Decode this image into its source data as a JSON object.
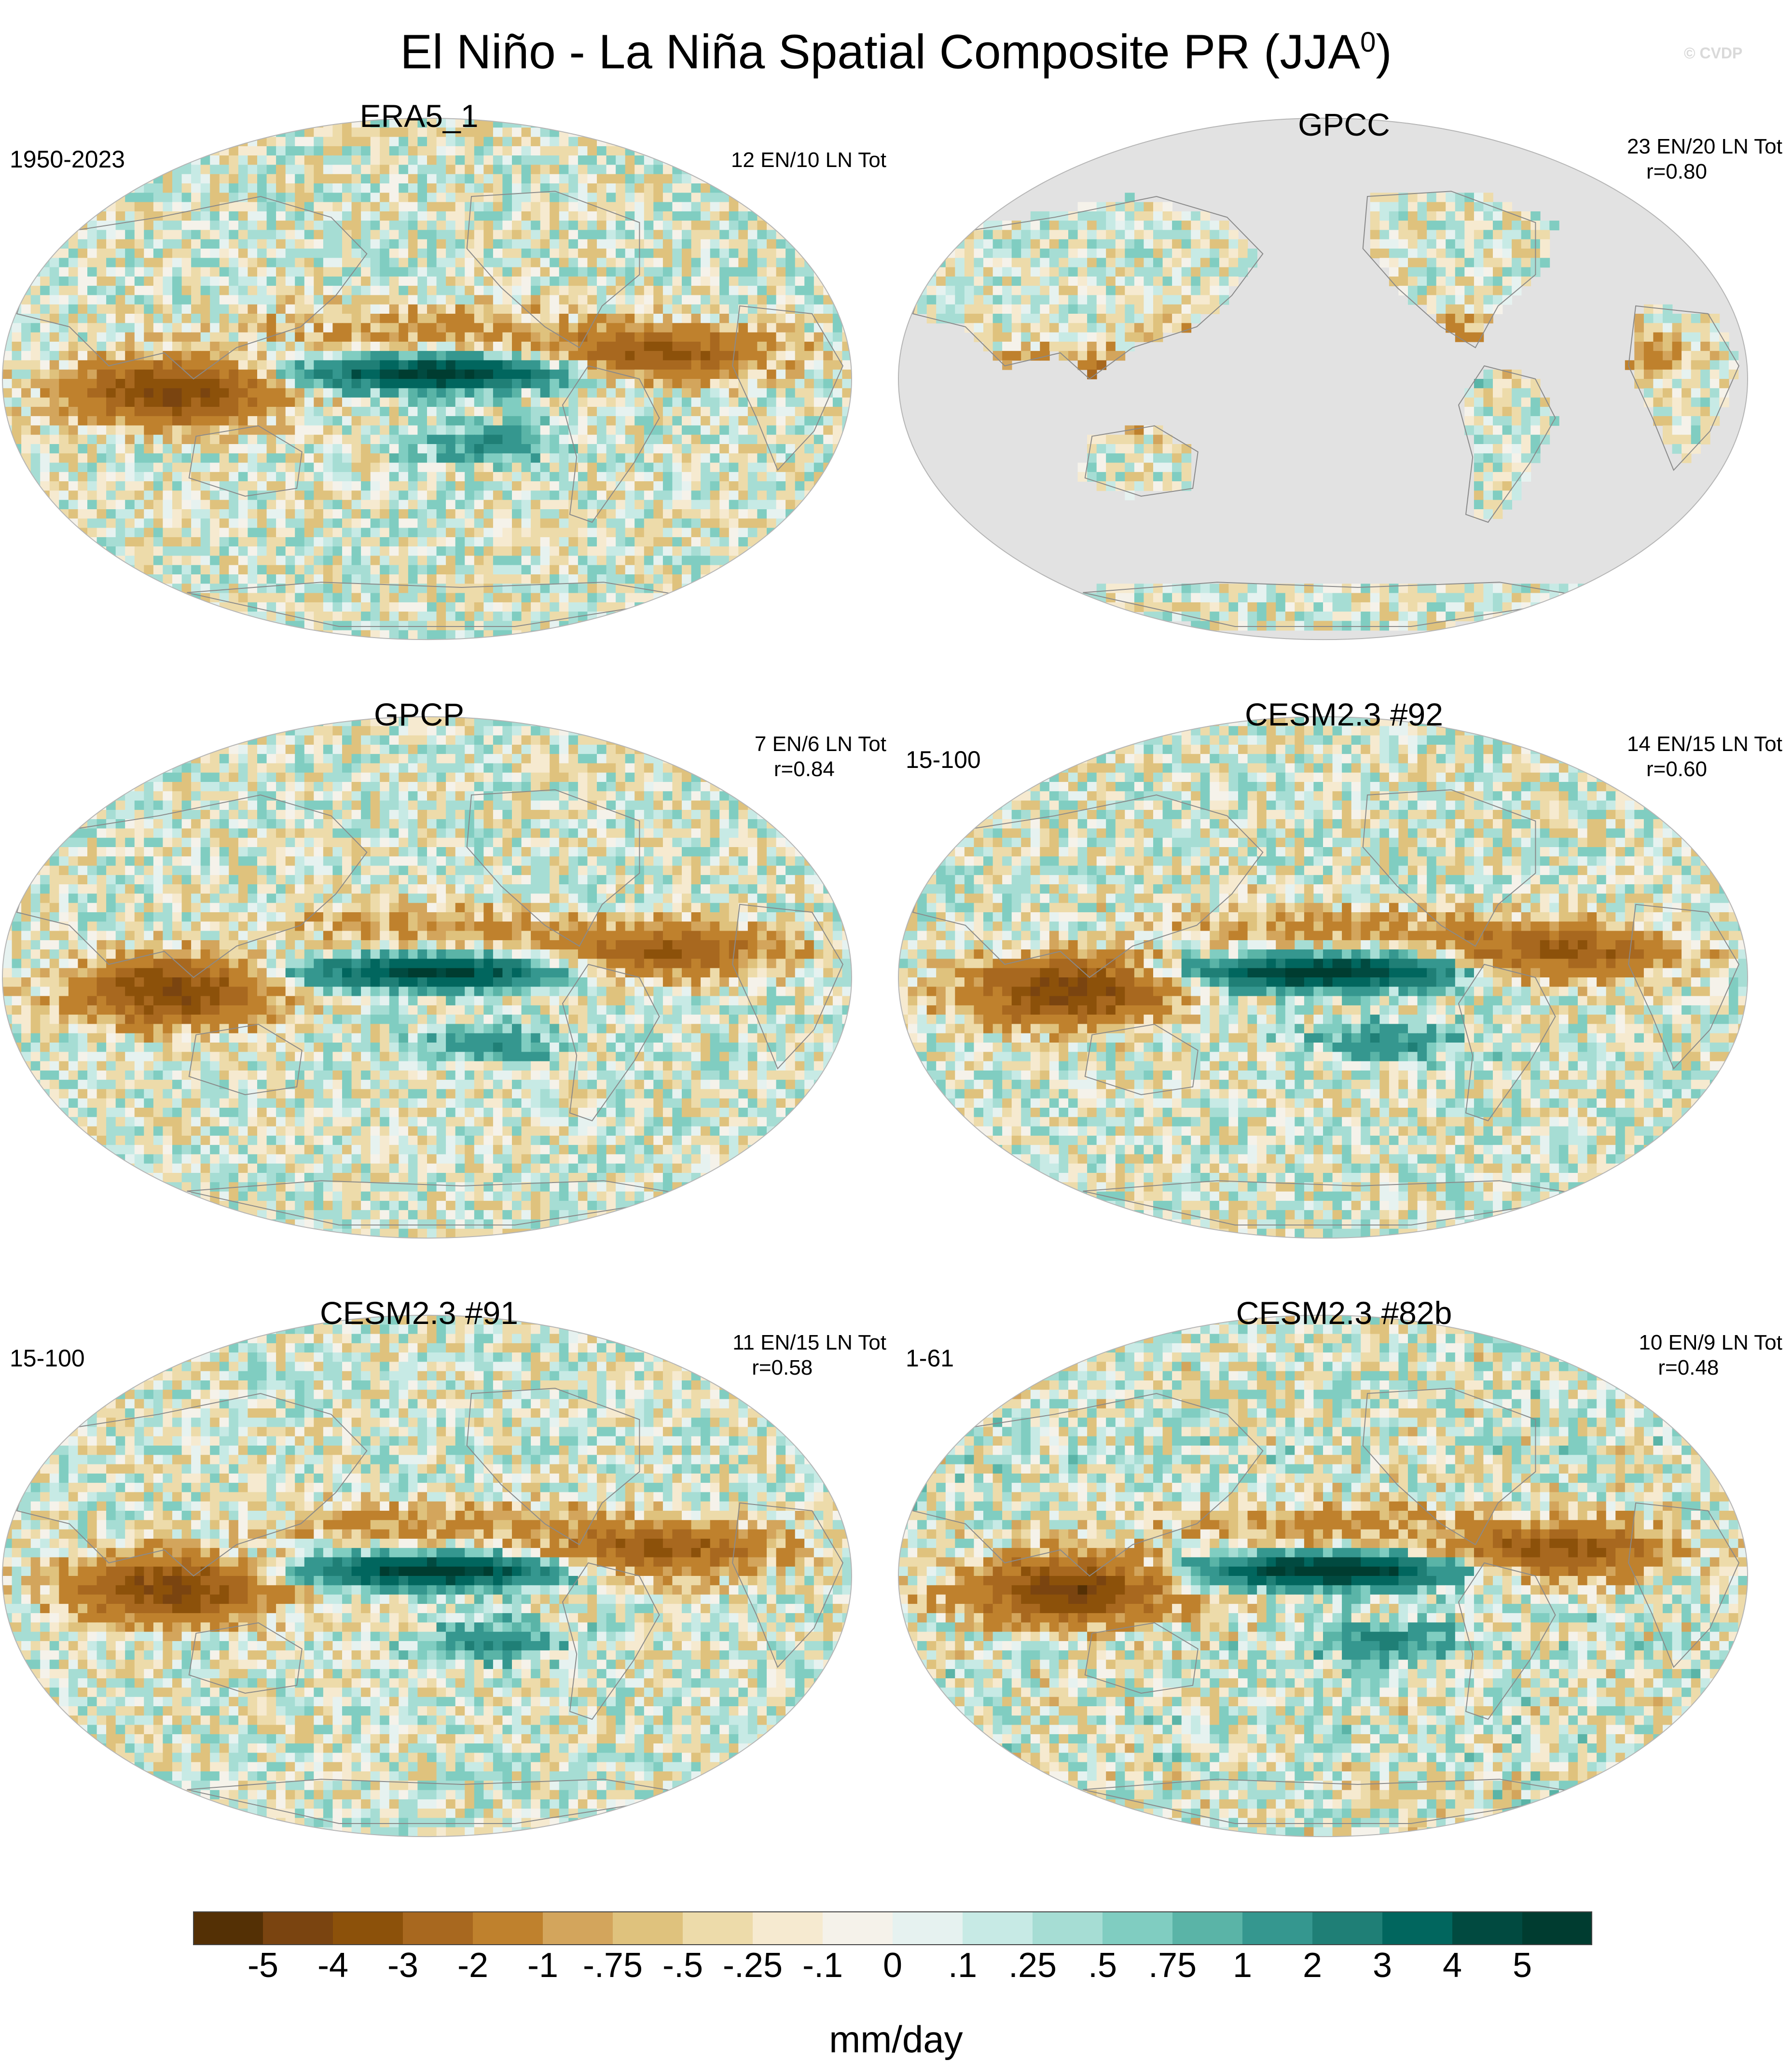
{
  "figure": {
    "title_main": "El Niño - La Niña Spatial Composite PR (JJA",
    "title_sup": "0",
    "title_close": ")",
    "watermark": "© CVDP"
  },
  "panels": [
    {
      "title": "ERA5_1",
      "years": "1950-2023",
      "counts": "12 EN/10 LN Tot",
      "corr": "",
      "style": "full",
      "amp": 1.0,
      "seed": 3
    },
    {
      "title": "GPCC",
      "years": "",
      "counts": "23 EN/20 LN Tot",
      "corr": "r=0.80",
      "style": "land",
      "amp": 0.9,
      "seed": 11
    },
    {
      "title": "GPCP",
      "years": "",
      "counts": "7 EN/6 LN Tot",
      "corr": "r=0.84",
      "style": "full",
      "amp": 0.95,
      "seed": 17
    },
    {
      "title": "CESM2.3 #92",
      "years": "15-100",
      "counts": "14 EN/15 LN Tot",
      "corr": "r=0.60",
      "style": "full",
      "amp": 1.05,
      "seed": 23
    },
    {
      "title": "CESM2.3 #91",
      "years": "15-100",
      "counts": "11 EN/15 LN Tot",
      "corr": "r=0.58",
      "style": "full",
      "amp": 1.0,
      "seed": 29
    },
    {
      "title": "CESM2.3 #82b",
      "years": "1-61",
      "counts": "10 EN/9 LN Tot",
      "corr": "r=0.48",
      "style": "full",
      "amp": 1.1,
      "seed": 37
    }
  ],
  "chart_data": {
    "type": "heatmap",
    "title": "El Niño - La Niña Spatial Composite PR (JJA0)",
    "projection": "robinson-like global maps centered on the Pacific",
    "colorbar": {
      "unit": "mm/day",
      "tick_labels": [
        "-5",
        "-4",
        "-3",
        "-2",
        "-1",
        "-.75",
        "-.5",
        "-.25",
        "-.1",
        "0",
        ".1",
        ".25",
        ".5",
        ".75",
        "1",
        "2",
        "3",
        "4",
        "5"
      ],
      "levels": [
        -5,
        -4,
        -3,
        -2,
        -1,
        -0.75,
        -0.5,
        -0.25,
        -0.1,
        0,
        0.1,
        0.25,
        0.5,
        0.75,
        1,
        2,
        3,
        4,
        5
      ],
      "colors": [
        "#543005",
        "#7a4410",
        "#8c510a",
        "#a8681f",
        "#bf812d",
        "#d3a55c",
        "#dfc27d",
        "#eddbaa",
        "#f6ead0",
        "#f5f2ea",
        "#e6f2f0",
        "#c7eae5",
        "#a6ddd4",
        "#80cdc1",
        "#5ab4a7",
        "#35978f",
        "#1f7f76",
        "#01665e",
        "#014a40",
        "#003c30"
      ]
    },
    "features": [
      "positive anomaly band in the central/eastern equatorial Pacific",
      "negative anomalies over the Maritime Continent and tropical Indian Ocean",
      "negative anomalies over northern South America and tropical Atlantic"
    ],
    "land_only_mask_color": "#e2e2e2"
  }
}
